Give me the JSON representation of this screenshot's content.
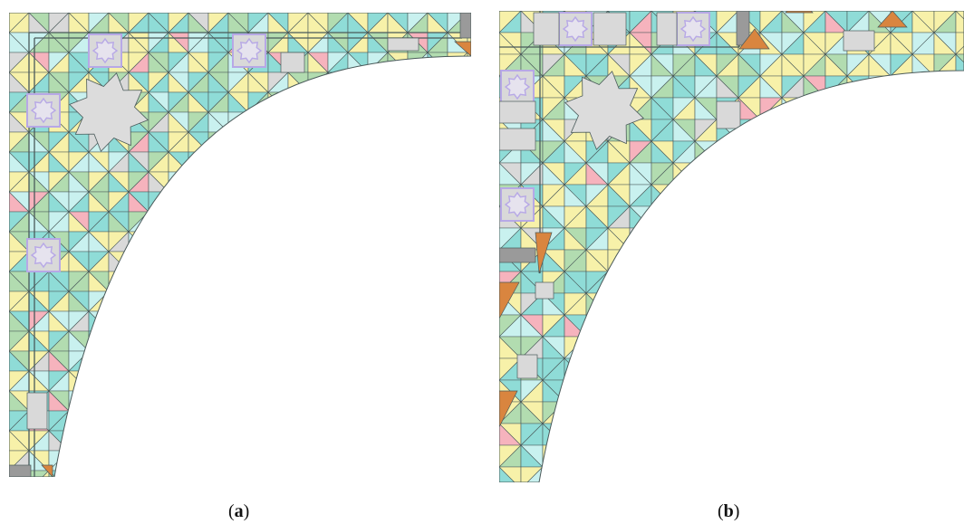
{
  "panels": [
    {
      "id": "a",
      "caption_open": "(",
      "caption_letter": "a",
      "caption_close": ")"
    },
    {
      "id": "b",
      "caption_open": "(",
      "caption_letter": "b",
      "caption_close": ")"
    }
  ],
  "palette": {
    "yellow": "#f7f1a9",
    "teal": "#8fdcd7",
    "light_cyan": "#c9f1ef",
    "green": "#b2dcb0",
    "pink": "#f6b3bd",
    "gray": "#d9d9d9",
    "dark_gray": "#9a9a9a",
    "orange": "#d9853f",
    "lavender": "#b7a8e6",
    "line": "#4a5a5a"
  }
}
